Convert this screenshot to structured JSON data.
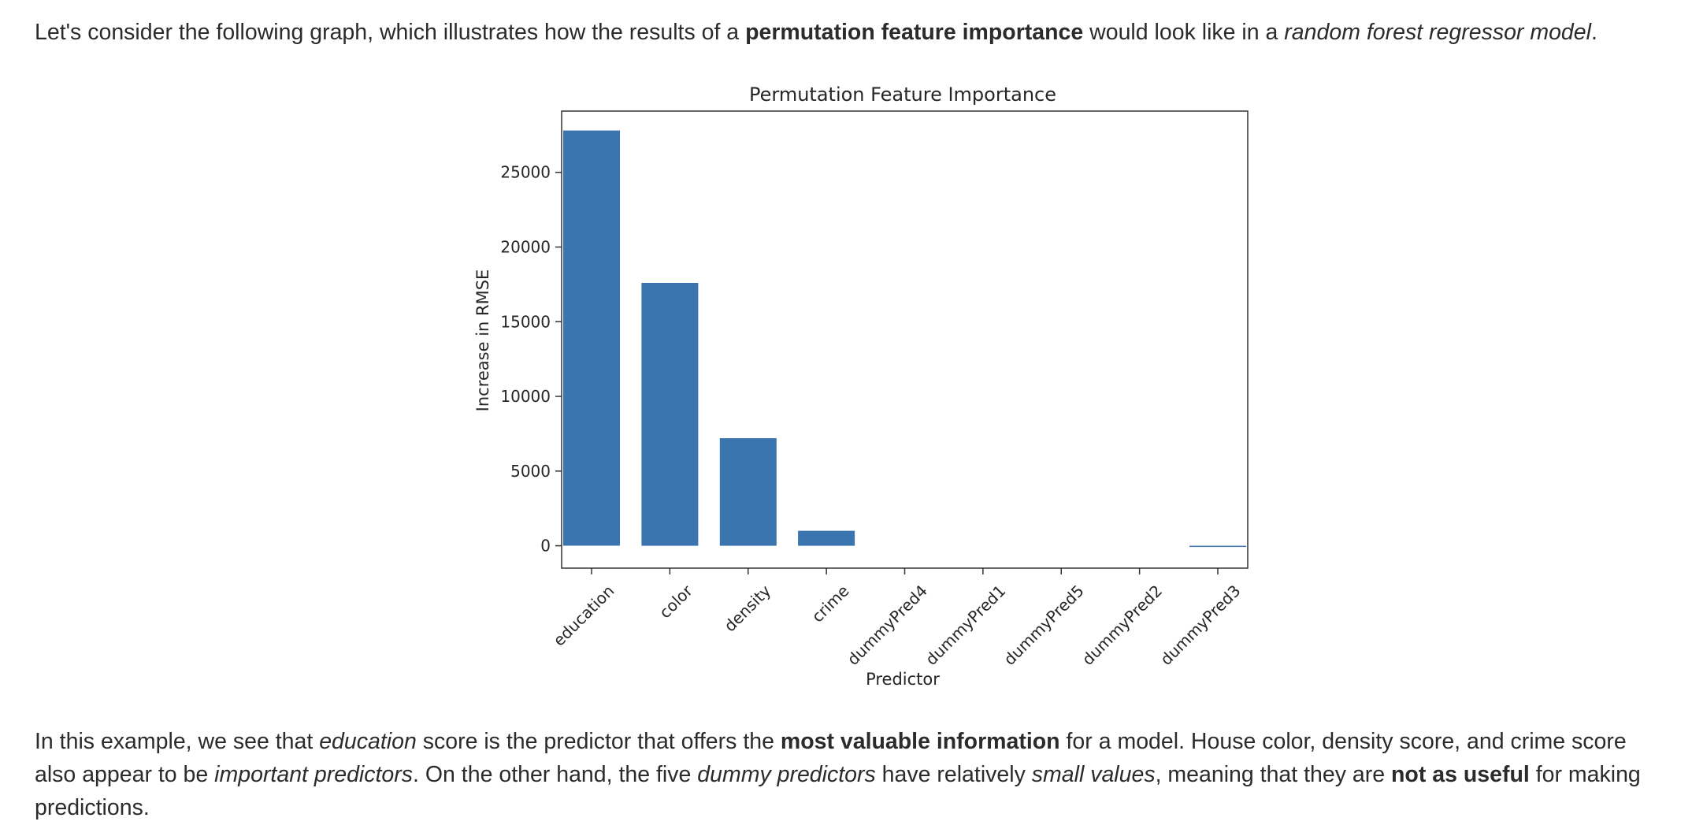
{
  "intro": {
    "t1": "Let's consider the following graph, which illustrates how the results of a ",
    "b1": "permutation feature importance",
    "t2": " would look like in a ",
    "i1": "random forest regressor model",
    "t3": "."
  },
  "conclusion": {
    "t1": "In this example, we see that ",
    "i1": "education",
    "t2": " score is the predictor that offers the ",
    "b1": "most valuable information",
    "t3": " for a model. House color, density score, and crime score also appear to be ",
    "i2": "important predictors",
    "t4": ". On the other hand, the five ",
    "i3": "dummy predictors",
    "t5": " have relatively ",
    "i4": "small values",
    "t6": ", meaning that they are ",
    "b2": "not as useful",
    "t7": " for making predictions."
  },
  "chart_data": {
    "type": "bar",
    "title": "Permutation Feature Importance",
    "xlabel": "Predictor",
    "ylabel": "Increase in RMSE",
    "categories": [
      "education",
      "color",
      "density",
      "crime",
      "dummyPred4",
      "dummyPred1",
      "dummyPred5",
      "dummyPred2",
      "dummyPred3"
    ],
    "values": [
      27800,
      17600,
      7200,
      1000,
      0,
      0,
      0,
      0,
      -30
    ],
    "ylim": [
      -1500,
      29100
    ],
    "yticks": [
      0,
      5000,
      10000,
      15000,
      20000,
      25000
    ],
    "bar_color": "#3a75af",
    "grid": false,
    "legend": "none"
  }
}
